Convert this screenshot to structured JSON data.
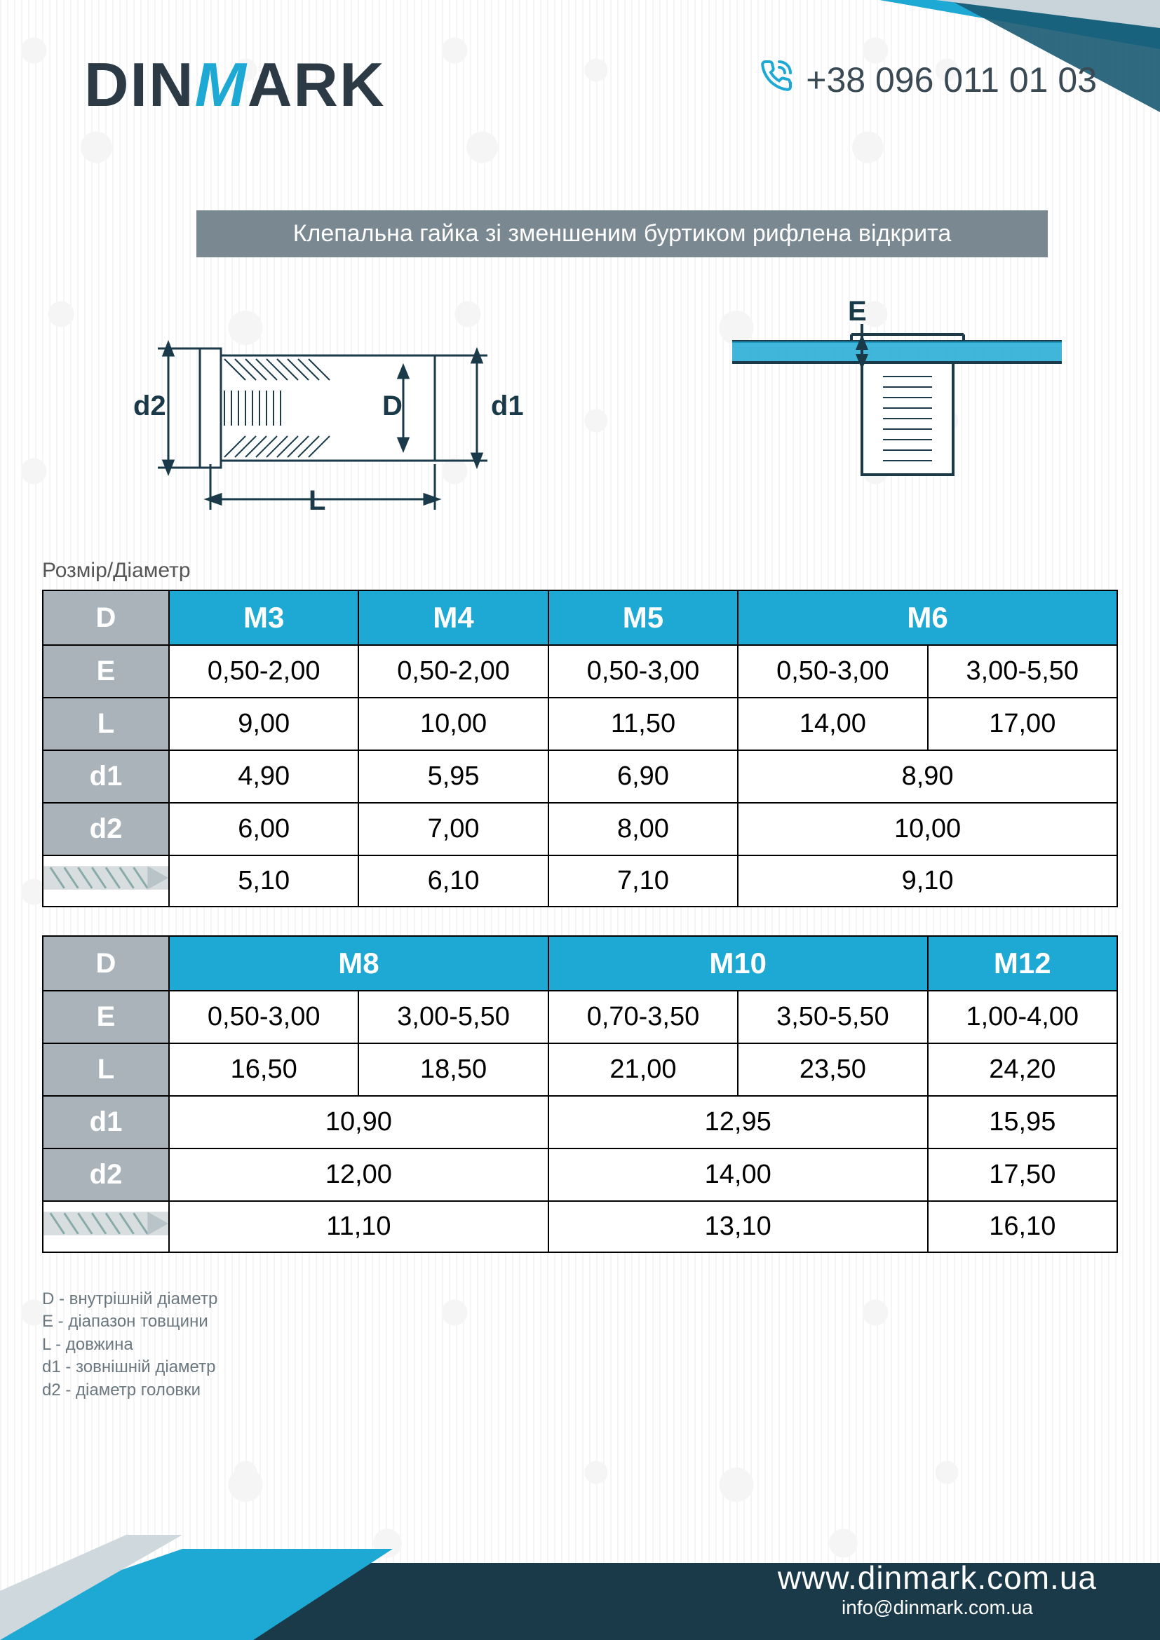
{
  "colors": {
    "brand_blue": "#1ea9d4",
    "dark_navy": "#2b3a45",
    "header_grey": "#7a8891",
    "label_grey": "#a9b3b9",
    "border": "#000000",
    "text_muted": "#6b7880",
    "footer_blue": "#1ea9d4",
    "footer_dark": "#1a3a4a",
    "white": "#ffffff"
  },
  "header": {
    "logo_pre": "DIN",
    "logo_m": "M",
    "logo_post": "ARK",
    "phone": "+38 096 011 01 03"
  },
  "title": "Клепальна гайка зі  зменшеним буртиком рифлена відкрита",
  "diagram_labels": {
    "d2": "d2",
    "D": "D",
    "d1": "d1",
    "L": "L",
    "E": "E"
  },
  "table_caption": "Розмір/Діаметр",
  "row_labels": {
    "D": "D",
    "E": "E",
    "L": "L",
    "d1": "d1",
    "d2": "d2"
  },
  "table1": {
    "headers": [
      {
        "label": "M3",
        "span": 1
      },
      {
        "label": "M4",
        "span": 1
      },
      {
        "label": "M5",
        "span": 1
      },
      {
        "label": "M6",
        "span": 2
      }
    ],
    "E": [
      "0,50-2,00",
      "0,50-2,00",
      "0,50-3,00",
      "0,50-3,00",
      "3,00-5,50"
    ],
    "L": [
      "9,00",
      "10,00",
      "11,50",
      "14,00",
      "17,00"
    ],
    "d1": [
      {
        "v": "4,90",
        "s": 1
      },
      {
        "v": "5,95",
        "s": 1
      },
      {
        "v": "6,90",
        "s": 1
      },
      {
        "v": "8,90",
        "s": 2
      }
    ],
    "d2": [
      {
        "v": "6,00",
        "s": 1
      },
      {
        "v": "7,00",
        "s": 1
      },
      {
        "v": "8,00",
        "s": 1
      },
      {
        "v": "10,00",
        "s": 2
      }
    ],
    "drill": [
      {
        "v": "5,10",
        "s": 1
      },
      {
        "v": "6,10",
        "s": 1
      },
      {
        "v": "7,10",
        "s": 1
      },
      {
        "v": "9,10",
        "s": 2
      }
    ]
  },
  "table2": {
    "headers": [
      {
        "label": "M8",
        "span": 2
      },
      {
        "label": "M10",
        "span": 2
      },
      {
        "label": "M12",
        "span": 1
      }
    ],
    "E": [
      "0,50-3,00",
      "3,00-5,50",
      "0,70-3,50",
      "3,50-5,50",
      "1,00-4,00"
    ],
    "L": [
      "16,50",
      "18,50",
      "21,00",
      "23,50",
      "24,20"
    ],
    "d1": [
      {
        "v": "10,90",
        "s": 2
      },
      {
        "v": "12,95",
        "s": 2
      },
      {
        "v": "15,95",
        "s": 1
      }
    ],
    "d2": [
      {
        "v": "12,00",
        "s": 2
      },
      {
        "v": "14,00",
        "s": 2
      },
      {
        "v": "17,50",
        "s": 1
      }
    ],
    "drill": [
      {
        "v": "11,10",
        "s": 2
      },
      {
        "v": "13,10",
        "s": 2
      },
      {
        "v": "16,10",
        "s": 1
      }
    ]
  },
  "legend": [
    "D - внутрішній діаметр",
    "E - діапазон  товщини",
    "L - довжина",
    "d1 - зовнішній діаметр",
    "d2 - діаметр головки"
  ],
  "footer": {
    "website": "www.dinmark.com.ua",
    "email": "info@dinmark.com.ua"
  }
}
